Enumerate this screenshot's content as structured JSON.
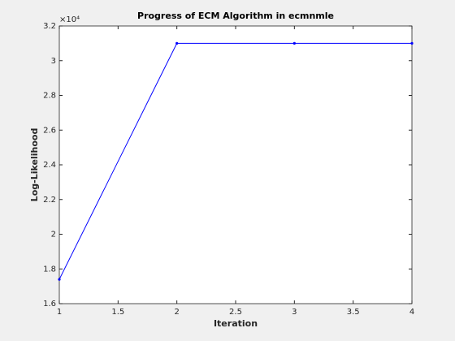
{
  "chart_data": {
    "type": "line",
    "title": "Progress of ECM Algorithm in ecmnmle",
    "x_label": "Iteration",
    "y_label": "Log-Likelihood",
    "y_exponent_label": "×10⁴",
    "x": [
      1,
      2,
      3,
      4
    ],
    "series": [
      {
        "color": "#0000ff",
        "values": [
          1.74,
          3.1,
          3.1,
          3.1
        ]
      }
    ],
    "xlim": [
      1,
      4
    ],
    "xticks": [
      1,
      1.5,
      2,
      2.5,
      3,
      3.5,
      4
    ],
    "ylim": [
      1.6,
      3.2
    ],
    "yticks": [
      1.6,
      1.8,
      2,
      2.2,
      2.4,
      2.6,
      2.8,
      3,
      3.2
    ],
    "grid": false
  }
}
